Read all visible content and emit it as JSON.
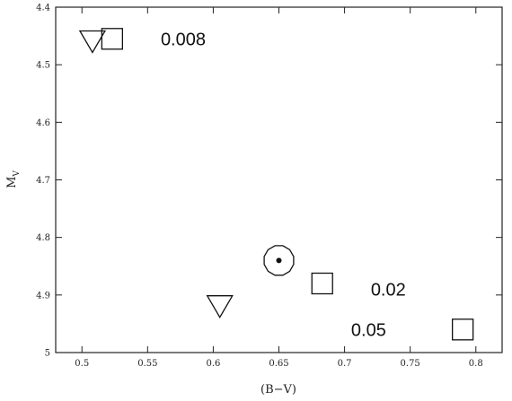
{
  "chart_data": {
    "type": "scatter",
    "xlabel": "(B−V)",
    "ylabel": "M",
    "ylabel_sub": "V",
    "xlim": [
      0.48,
      0.82
    ],
    "ylim": [
      4.4,
      5.0
    ],
    "y_inverted": true,
    "grid": false,
    "x_ticks": [
      0.5,
      0.55,
      0.6,
      0.65,
      0.7,
      0.75,
      0.8
    ],
    "x_tick_labels": [
      "0.5",
      "0.55",
      "0.6",
      "0.65",
      "0.7",
      "0.75",
      "0.8"
    ],
    "y_ticks": [
      4.4,
      4.5,
      4.6,
      4.7,
      4.8,
      4.9,
      5.0
    ],
    "y_tick_labels": [
      "4.4",
      "4.5",
      "4.6",
      "4.7",
      "4.8",
      "4.9",
      "5"
    ],
    "series": [
      {
        "marker": "triangle-down",
        "points": [
          {
            "x": 0.508,
            "y": 4.46
          },
          {
            "x": 0.605,
            "y": 4.92
          }
        ]
      },
      {
        "marker": "square",
        "points": [
          {
            "x": 0.523,
            "y": 4.455
          },
          {
            "x": 0.683,
            "y": 4.88
          },
          {
            "x": 0.79,
            "y": 4.96
          }
        ]
      },
      {
        "marker": "sun",
        "points": [
          {
            "x": 0.65,
            "y": 4.84
          }
        ]
      }
    ],
    "annotations": [
      {
        "text": "0.008",
        "x": 0.56,
        "y": 4.455
      },
      {
        "text": "0.02",
        "x": 0.72,
        "y": 4.89
      },
      {
        "text": "0.05",
        "x": 0.705,
        "y": 4.96
      }
    ]
  }
}
